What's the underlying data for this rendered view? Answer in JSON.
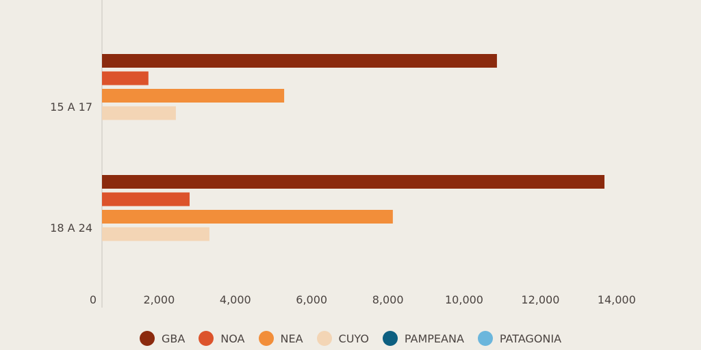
{
  "chart_data": {
    "type": "bar",
    "orientation": "horizontal",
    "categories": [
      "15 A 17",
      "18 A 24"
    ],
    "series": [
      {
        "name": "GBA",
        "color": "#8b2a0e",
        "values": [
          10860,
          13680
        ]
      },
      {
        "name": "NOA",
        "color": "#dc532b",
        "values": [
          1720,
          2800
        ]
      },
      {
        "name": "NEA",
        "color": "#f28e3a",
        "values": [
          5280,
          8130
        ]
      },
      {
        "name": "CUYO",
        "color": "#f3d5b5",
        "values": [
          2440,
          3320
        ]
      },
      {
        "name": "PAMPEANA",
        "color": "#0d5f80",
        "values": [
          null,
          null
        ]
      },
      {
        "name": "PATAGONIA",
        "color": "#6bb6dc",
        "values": [
          null,
          null
        ]
      }
    ],
    "xticks": [
      0,
      2000,
      4000,
      6000,
      8000,
      10000,
      12000,
      14000
    ],
    "xtick_labels": [
      "0",
      "2,000",
      "4,000",
      "6,000",
      "8,000",
      "10,000",
      "12,000",
      "14,000"
    ],
    "xlim": [
      0,
      14000
    ],
    "grid": false,
    "legend_position": "bottom"
  }
}
